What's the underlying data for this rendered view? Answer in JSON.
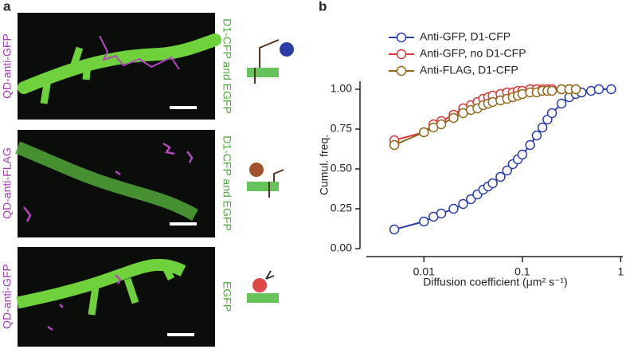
{
  "panel_a": {
    "label": "a",
    "rows": [
      {
        "probe": "QD-anti-GFP",
        "expression": "D1-CFP and EGFP"
      },
      {
        "probe": "QD-anti-FLAG",
        "expression": "D1-CFP and EGFP"
      },
      {
        "probe": "QD-anti-GFP",
        "expression": "EGFP"
      }
    ]
  },
  "chart_data": {
    "type": "line",
    "panel_label": "b",
    "x_label": "Diffusion coefficient (μm² s⁻¹)",
    "y_label": "Cumul. freq.",
    "log_x": true,
    "xlim": [
      0.0026,
      1.05
    ],
    "ylim": [
      0,
      1.05
    ],
    "xticks": [
      0.01,
      0.1,
      1
    ],
    "yticks": [
      {
        "value": 0,
        "label": "0.00"
      },
      {
        "value": 0.25,
        "label": "0.25"
      },
      {
        "value": 0.5,
        "label": "0.50"
      },
      {
        "value": 0.75,
        "label": "0.75"
      },
      {
        "value": 1,
        "label": "1.00"
      }
    ],
    "legend": "upper left",
    "x": [
      0.005,
      0.01,
      0.0125,
      0.015,
      0.02,
      0.025,
      0.03,
      0.035,
      0.04,
      0.045,
      0.05,
      0.06,
      0.07,
      0.08,
      0.09,
      0.1,
      0.12,
      0.14,
      0.16,
      0.18,
      0.2,
      0.25,
      0.3,
      0.35,
      0.4,
      0.5,
      0.6,
      0.8
    ],
    "series": [
      {
        "name": "Anti-GFP, D1-CFP",
        "color": "#2b3ea8",
        "values": [
          0.12,
          0.17,
          0.2,
          0.22,
          0.25,
          0.28,
          0.31,
          0.34,
          0.37,
          0.39,
          0.41,
          0.45,
          0.49,
          0.53,
          0.56,
          0.59,
          0.65,
          0.71,
          0.76,
          0.81,
          0.85,
          0.91,
          0.95,
          0.97,
          0.98,
          0.99,
          1,
          1
        ]
      },
      {
        "name": "Anti-GFP, no D1-CFP",
        "color": "#d9383a",
        "values": [
          0.68,
          0.73,
          0.78,
          0.8,
          0.84,
          0.88,
          0.9,
          0.92,
          0.94,
          0.95,
          0.96,
          0.97,
          0.98,
          0.98,
          0.99,
          0.99,
          1,
          1,
          1,
          1,
          1,
          1,
          1,
          null,
          null,
          null,
          null,
          null
        ]
      },
      {
        "name": "Anti-FLAG, D1-CFP",
        "color": "#8f6a1c",
        "values": [
          0.65,
          0.73,
          0.76,
          0.78,
          0.82,
          0.85,
          0.87,
          0.88,
          0.9,
          0.91,
          0.92,
          0.93,
          0.94,
          0.95,
          0.96,
          0.97,
          0.98,
          0.98,
          0.99,
          0.99,
          0.99,
          1,
          1,
          1,
          null,
          null,
          null,
          null
        ]
      }
    ]
  }
}
